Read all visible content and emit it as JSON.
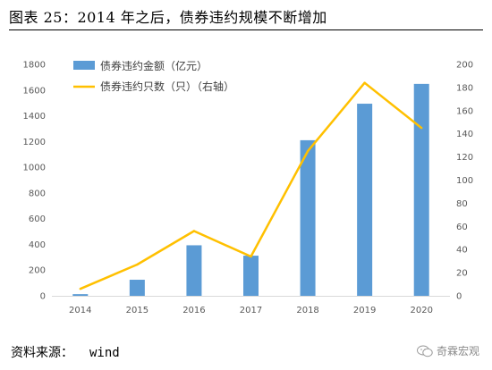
{
  "figure": {
    "title": "图表 25：2014 年之后，债券违约规模不断增加",
    "source_label": "资料来源：",
    "source_value": "wind",
    "watermark": "奇霖宏观",
    "watermark_icon": "wechat-icon"
  },
  "chart_data": {
    "type": "bar+line",
    "categories": [
      "2014",
      "2015",
      "2016",
      "2017",
      "2018",
      "2019",
      "2020"
    ],
    "series": [
      {
        "name": "债券违约金额（亿元）",
        "type": "bar",
        "axis": "left",
        "color": "#5B9BD5",
        "values": [
          13,
          125,
          393,
          312,
          1210,
          1494,
          1648
        ]
      },
      {
        "name": "债券违约只数（只）（右轴）",
        "type": "line",
        "axis": "right",
        "color": "#FFC000",
        "values": [
          6,
          27,
          56,
          34,
          125,
          184,
          145
        ]
      }
    ],
    "ylim_left": [
      0,
      1800
    ],
    "yticks_left": [
      "0",
      "200",
      "400",
      "600",
      "800",
      "1000",
      "1200",
      "1400",
      "1600",
      "1800"
    ],
    "ylim_right": [
      0,
      200
    ],
    "yticks_right": [
      "0",
      "20",
      "40",
      "60",
      "80",
      "100",
      "120",
      "140",
      "160",
      "180",
      "200"
    ],
    "legend_position": "top-left",
    "grid": false
  }
}
